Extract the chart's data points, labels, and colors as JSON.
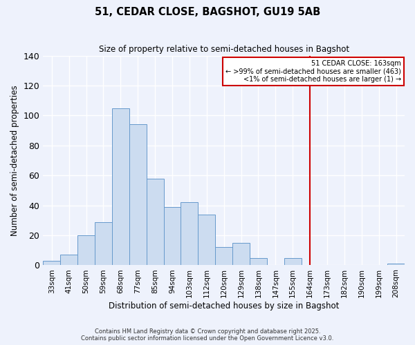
{
  "title": "51, CEDAR CLOSE, BAGSHOT, GU19 5AB",
  "subtitle": "Size of property relative to semi-detached houses in Bagshot",
  "xlabel": "Distribution of semi-detached houses by size in Bagshot",
  "ylabel": "Number of semi-detached properties",
  "bin_labels": [
    "33sqm",
    "41sqm",
    "50sqm",
    "59sqm",
    "68sqm",
    "77sqm",
    "85sqm",
    "94sqm",
    "103sqm",
    "112sqm",
    "120sqm",
    "129sqm",
    "138sqm",
    "147sqm",
    "155sqm",
    "164sqm",
    "173sqm",
    "182sqm",
    "190sqm",
    "199sqm",
    "208sqm"
  ],
  "bar_values": [
    3,
    7,
    20,
    29,
    105,
    94,
    58,
    39,
    42,
    34,
    12,
    15,
    5,
    0,
    5,
    0,
    0,
    0,
    0,
    0,
    1
  ],
  "bar_color": "#ccdcf0",
  "bar_edge_color": "#6699cc",
  "vline_x_index": 15,
  "vline_color": "#cc0000",
  "ylim": [
    0,
    140
  ],
  "yticks": [
    0,
    20,
    40,
    60,
    80,
    100,
    120,
    140
  ],
  "annotation_title": "51 CEDAR CLOSE: 163sqm",
  "annotation_line1": "← >99% of semi-detached houses are smaller (463)",
  "annotation_line2": "<1% of semi-detached houses are larger (1) →",
  "annotation_box_color": "#cc0000",
  "footer_line1": "Contains HM Land Registry data © Crown copyright and database right 2025.",
  "footer_line2": "Contains public sector information licensed under the Open Government Licence v3.0.",
  "background_color": "#eef2fc",
  "grid_color": "#ffffff"
}
